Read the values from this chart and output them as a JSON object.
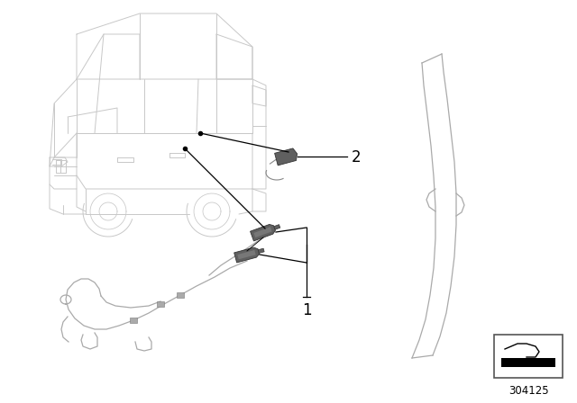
{
  "background_color": "#ffffff",
  "line_color_car": "#c8c8c8",
  "line_color_parts": "#888888",
  "line_color_leader": "#000000",
  "part_color": "#606060",
  "part_color_light": "#888888",
  "text_color": "#000000",
  "part_number": "304125",
  "label_1": "1",
  "label_2": "2",
  "car_lw": 0.7,
  "part_lw": 0.8,
  "leader_lw": 0.9,
  "wire_lw": 0.9
}
